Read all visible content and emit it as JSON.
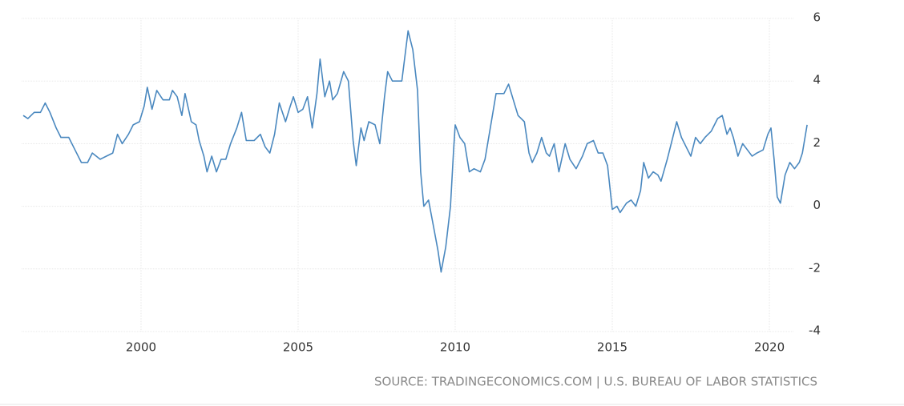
{
  "chart_data": {
    "type": "line",
    "source": "SOURCE: TRADINGECONOMICS.COM | U.S. BUREAU OF LABOR STATISTICS",
    "color": "#4a88bf",
    "grid": true,
    "xlim": [
      1996.2,
      2021.3
    ],
    "xticks": [
      2000,
      2005,
      2010,
      2015,
      2020
    ],
    "ylim": [
      -4,
      6
    ],
    "yticks": [
      -4,
      -2,
      0,
      2,
      4,
      6
    ],
    "x": [
      1996.25,
      1996.4,
      1996.6,
      1996.8,
      1996.95,
      1997.1,
      1997.3,
      1997.45,
      1997.7,
      1997.9,
      1998.1,
      1998.3,
      1998.45,
      1998.7,
      1998.9,
      1999.1,
      1999.25,
      1999.4,
      1999.6,
      1999.75,
      1999.95,
      2000.1,
      2000.2,
      2000.35,
      2000.5,
      2000.7,
      2000.9,
      2001.0,
      2001.15,
      2001.3,
      2001.4,
      2001.6,
      2001.75,
      2001.85,
      2002.0,
      2002.1,
      2002.25,
      2002.4,
      2002.55,
      2002.7,
      2002.85,
      2003.05,
      2003.2,
      2003.35,
      2003.6,
      2003.8,
      2003.95,
      2004.1,
      2004.25,
      2004.4,
      2004.6,
      2004.75,
      2004.85,
      2005.0,
      2005.15,
      2005.3,
      2005.45,
      2005.6,
      2005.7,
      2005.85,
      2006.0,
      2006.1,
      2006.25,
      2006.45,
      2006.6,
      2006.75,
      2006.85,
      2007.0,
      2007.1,
      2007.25,
      2007.45,
      2007.6,
      2007.75,
      2007.85,
      2008.0,
      2008.15,
      2008.3,
      2008.5,
      2008.65,
      2008.8,
      2008.9,
      2009.0,
      2009.15,
      2009.3,
      2009.45,
      2009.55,
      2009.7,
      2009.85,
      2009.95,
      2010.0,
      2010.15,
      2010.3,
      2010.45,
      2010.6,
      2010.8,
      2010.95,
      2011.15,
      2011.3,
      2011.55,
      2011.7,
      2011.85,
      2012.0,
      2012.2,
      2012.35,
      2012.45,
      2012.6,
      2012.75,
      2012.9,
      2013.0,
      2013.15,
      2013.3,
      2013.5,
      2013.65,
      2013.85,
      2014.05,
      2014.2,
      2014.4,
      2014.55,
      2014.7,
      2014.85,
      2015.0,
      2015.15,
      2015.25,
      2015.45,
      2015.6,
      2015.75,
      2015.9,
      2016.0,
      2016.15,
      2016.3,
      2016.45,
      2016.55,
      2016.75,
      2016.9,
      2017.05,
      2017.2,
      2017.35,
      2017.5,
      2017.65,
      2017.8,
      2017.95,
      2018.15,
      2018.35,
      2018.5,
      2018.65,
      2018.75,
      2018.85,
      2019.0,
      2019.15,
      2019.3,
      2019.45,
      2019.6,
      2019.8,
      2019.95,
      2020.05,
      2020.15,
      2020.25,
      2020.35,
      2020.5,
      2020.65,
      2020.8,
      2020.95,
      2021.05,
      2021.2
    ],
    "values": [
      2.9,
      2.8,
      3.0,
      3.0,
      3.3,
      3.0,
      2.5,
      2.2,
      2.2,
      1.8,
      1.4,
      1.4,
      1.7,
      1.5,
      1.6,
      1.7,
      2.3,
      2.0,
      2.3,
      2.6,
      2.7,
      3.2,
      3.8,
      3.1,
      3.7,
      3.4,
      3.4,
      3.7,
      3.5,
      2.9,
      3.6,
      2.7,
      2.6,
      2.1,
      1.6,
      1.1,
      1.6,
      1.1,
      1.5,
      1.5,
      2.0,
      2.5,
      3.0,
      2.1,
      2.1,
      2.3,
      1.9,
      1.7,
      2.3,
      3.3,
      2.7,
      3.2,
      3.5,
      3.0,
      3.1,
      3.5,
      2.5,
      3.6,
      4.7,
      3.5,
      4.0,
      3.4,
      3.6,
      4.3,
      4.0,
      2.1,
      1.3,
      2.5,
      2.1,
      2.7,
      2.6,
      2.0,
      3.5,
      4.3,
      4.0,
      4.0,
      4.0,
      5.6,
      5.0,
      3.7,
      1.1,
      0.0,
      0.2,
      -0.6,
      -1.4,
      -2.1,
      -1.3,
      0.0,
      1.8,
      2.6,
      2.2,
      2.0,
      1.1,
      1.2,
      1.1,
      1.5,
      2.7,
      3.6,
      3.6,
      3.9,
      3.4,
      2.9,
      2.7,
      1.7,
      1.4,
      1.7,
      2.2,
      1.7,
      1.6,
      2.0,
      1.1,
      2.0,
      1.5,
      1.2,
      1.6,
      2.0,
      2.1,
      1.7,
      1.7,
      1.3,
      -0.1,
      0.0,
      -0.2,
      0.1,
      0.2,
      0.0,
      0.5,
      1.4,
      0.9,
      1.1,
      1.0,
      0.8,
      1.5,
      2.1,
      2.7,
      2.2,
      1.9,
      1.6,
      2.2,
      2.0,
      2.2,
      2.4,
      2.8,
      2.9,
      2.3,
      2.5,
      2.2,
      1.6,
      2.0,
      1.8,
      1.6,
      1.7,
      1.8,
      2.3,
      2.5,
      1.5,
      0.3,
      0.1,
      1.0,
      1.4,
      1.2,
      1.4,
      1.7,
      2.6
    ]
  }
}
